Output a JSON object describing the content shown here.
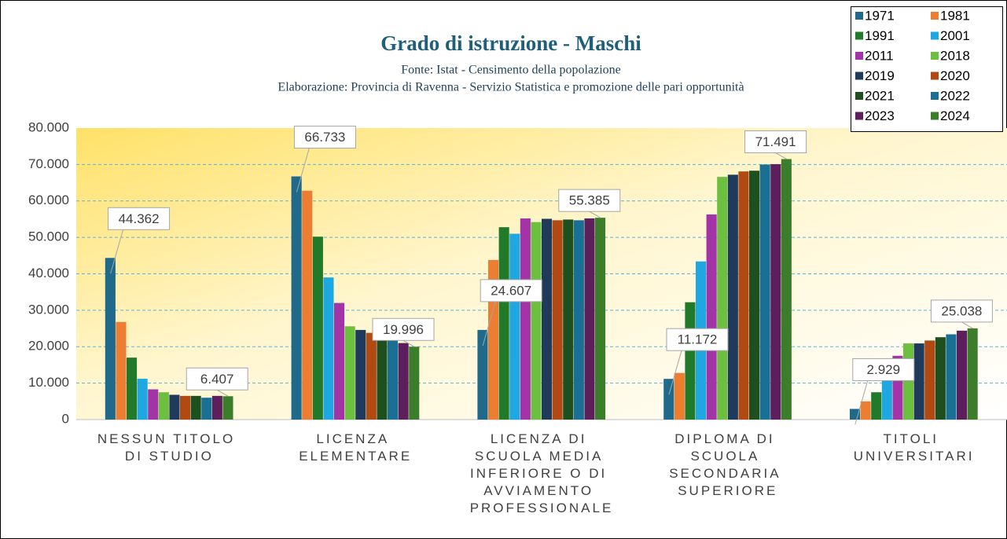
{
  "chart_data": {
    "type": "bar",
    "title": "Grado di istruzione - Maschi",
    "subtitle": "Fonte: Istat - Censimento della popolazione",
    "subtitle2": "Elaborazione: Provincia di Ravenna - Servizio Statistica e promozione delle pari opportunità",
    "categories": [
      "NESSUN TITOLO DI STUDIO",
      "LICENZA ELEMENTARE",
      "LICENZA DI SCUOLA MEDIA INFERIORE O DI AVVIAMENTO PROFESSIONALE",
      "DIPLOMA DI SCUOLA SECONDARIA SUPERIORE",
      "TITOLI UNIVERSITARI"
    ],
    "series": [
      {
        "name": "1971",
        "color": "#1f6a8a",
        "values": [
          44362,
          66733,
          24607,
          11172,
          2929
        ],
        "value_labels": [
          "44.362",
          "66.733",
          "24.607",
          "11.172",
          "2.929"
        ]
      },
      {
        "name": "1981",
        "color": "#ed7d31",
        "values": [
          26800,
          62800,
          43800,
          12800,
          5000
        ]
      },
      {
        "name": "1991",
        "color": "#217a2a",
        "values": [
          17000,
          50200,
          52800,
          32200,
          7500
        ]
      },
      {
        "name": "2001",
        "color": "#1ea7e1",
        "values": [
          11200,
          39000,
          51000,
          43400,
          11100
        ]
      },
      {
        "name": "2011",
        "color": "#a334a8",
        "values": [
          8300,
          32000,
          55200,
          56300,
          17500
        ]
      },
      {
        "name": "2018",
        "color": "#6cbf3f",
        "values": [
          7500,
          25600,
          54200,
          66600,
          20900
        ]
      },
      {
        "name": "2019",
        "color": "#1f3a5a",
        "values": [
          6800,
          24600,
          55100,
          67200,
          20900
        ]
      },
      {
        "name": "2020",
        "color": "#b04a12",
        "values": [
          6500,
          23800,
          54700,
          68100,
          21700
        ]
      },
      {
        "name": "2021",
        "color": "#1d4f1f",
        "values": [
          6500,
          22600,
          54900,
          68300,
          22600
        ]
      },
      {
        "name": "2022",
        "color": "#1a6f95",
        "values": [
          6000,
          21800,
          54700,
          70000,
          23400
        ]
      },
      {
        "name": "2023",
        "color": "#5c1f5c",
        "values": [
          6500,
          21000,
          55200,
          70100,
          24400
        ]
      },
      {
        "name": "2024",
        "color": "#3b7d2a",
        "values": [
          6407,
          19996,
          55385,
          71491,
          25038
        ],
        "value_labels": [
          "6.407",
          "19.996",
          "55.385",
          "71.491",
          "25.038"
        ]
      }
    ],
    "ylim": [
      0,
      80000
    ],
    "yticks": [
      0,
      {
        "value": 10000,
        "label": "10.000"
      },
      {
        "value": 20000,
        "label": "20.000"
      },
      {
        "value": 30000,
        "label": "30.000"
      },
      {
        "value": 40000,
        "label": "40.000"
      },
      {
        "value": 50000,
        "label": "50.000"
      },
      {
        "value": 60000,
        "label": "60.000"
      },
      {
        "value": 70000,
        "label": "70.000"
      },
      {
        "value": 80000,
        "label": "80.000"
      }
    ],
    "grid": true,
    "legend": "top-right"
  }
}
